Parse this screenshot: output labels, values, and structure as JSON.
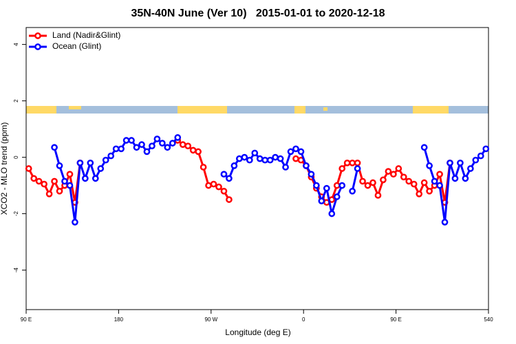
{
  "chart_data": {
    "type": "line",
    "title": "35N-40N June (Ver 10)   2015-01-01 to 2020-12-18",
    "xlabel": "Longitude (deg E)",
    "ylabel": "XCO2 - MLO trend (ppm)",
    "x": [
      92.5,
      97.5,
      102.5,
      107.5,
      112.5,
      117.5,
      122.5,
      127.5,
      132.5,
      137.5,
      142.5,
      147.5,
      152.5,
      157.5,
      162.5,
      167.5,
      172.5,
      177.5,
      182.5,
      187.5,
      192.5,
      197.5,
      202.5,
      207.5,
      212.5,
      217.5,
      222.5,
      227.5,
      232.5,
      237.5,
      242.5,
      247.5,
      252.5,
      257.5,
      262.5,
      267.5,
      272.5,
      277.5,
      282.5,
      287.5,
      292.5,
      297.5,
      302.5,
      307.5,
      312.5,
      317.5,
      322.5,
      327.5,
      332.5,
      337.5,
      342.5,
      347.5,
      352.5,
      357.5,
      362.5,
      367.5,
      372.5,
      377.5,
      382.5,
      387.5,
      392.5,
      397.5,
      402.5,
      407.5,
      412.5,
      417.5,
      422.5,
      427.5,
      432.5,
      437.5,
      442.5,
      447.5,
      452.5,
      457.5,
      462.5,
      467.5,
      472.5,
      477.5,
      482.5,
      487.5,
      492.5,
      497.5,
      502.5,
      507.5,
      512.5,
      517.5,
      522.5,
      527.5,
      532.5,
      537.5
    ],
    "series": [
      {
        "name": "Land (Nadir&Glint)",
        "color": "#ff0000",
        "values": [
          -0.4,
          -0.75,
          -0.85,
          -0.95,
          -1.3,
          -0.85,
          -1.2,
          -1.0,
          -0.6,
          -1.6,
          -0.2,
          null,
          null,
          null,
          null,
          null,
          null,
          null,
          null,
          null,
          null,
          null,
          null,
          null,
          null,
          null,
          null,
          null,
          null,
          0.6,
          0.45,
          0.4,
          0.25,
          0.2,
          -0.35,
          -1.0,
          -0.95,
          -1.05,
          -1.2,
          -1.5,
          null,
          null,
          null,
          null,
          null,
          null,
          null,
          null,
          null,
          null,
          null,
          null,
          -0.05,
          -0.1,
          -0.3,
          -0.7,
          -1.1,
          -1.4,
          -1.6,
          -1.5,
          -1.0,
          -0.4,
          -0.2,
          -0.2,
          -0.2,
          -0.85,
          -1.0,
          -0.9,
          -1.35,
          -0.8,
          -0.5,
          -0.6,
          -0.4,
          -0.7,
          -0.85,
          -0.95,
          -1.3,
          -0.9,
          -1.2,
          -1.0,
          -0.6,
          -1.6,
          -0.2,
          null,
          null,
          null,
          null,
          null,
          null,
          null
        ]
      },
      {
        "name": "Ocean (Glint)",
        "color": "#0000ff",
        "values": [
          null,
          null,
          null,
          null,
          null,
          0.35,
          -0.3,
          -0.85,
          -1.0,
          -2.3,
          -0.2,
          -0.75,
          -0.2,
          -0.75,
          -0.4,
          -0.1,
          0.05,
          0.3,
          0.3,
          0.6,
          0.6,
          0.35,
          0.45,
          0.2,
          0.4,
          0.65,
          0.5,
          0.35,
          0.5,
          0.7,
          null,
          null,
          null,
          null,
          null,
          null,
          null,
          null,
          -0.6,
          -0.75,
          -0.3,
          -0.05,
          0,
          -0.1,
          0.15,
          -0.05,
          -0.1,
          -0.1,
          0,
          -0.05,
          -0.35,
          0.2,
          0.3,
          0.2,
          -0.3,
          -0.6,
          -1.0,
          -1.55,
          -1.1,
          -2.0,
          -1.4,
          -1.0,
          null,
          -1.2,
          -0.4,
          null,
          null,
          null,
          null,
          null,
          null,
          null,
          null,
          null,
          null,
          null,
          null,
          0.35,
          -0.3,
          -0.85,
          -1.0,
          -2.3,
          -0.2,
          -0.75,
          -0.2,
          -0.75,
          -0.4,
          -0.1,
          0.05,
          0.3
        ]
      }
    ],
    "xlim": [
      90,
      540
    ],
    "xticks": [
      {
        "value": 90,
        "label": "90 E"
      },
      180,
      {
        "value": 270,
        "label": "90 W"
      },
      {
        "value": 360,
        "label": "0"
      },
      {
        "value": 450,
        "label": "90 E"
      },
      540
    ],
    "ylim": [
      -5.4,
      4.6
    ],
    "yticks": [
      -4,
      -2,
      0,
      2,
      4
    ],
    "legend": "top-left"
  }
}
